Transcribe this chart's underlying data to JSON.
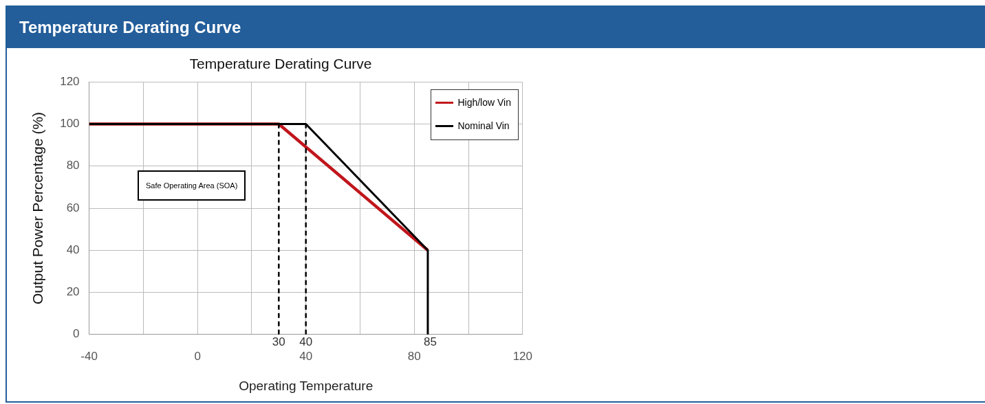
{
  "chart_data": {
    "type": "line",
    "title": "Temperature Derating Curve",
    "subtitle": "Temperature Derating Curve",
    "xlabel": "Operating Temperature",
    "ylabel": "Output Power Percentage (%)",
    "series": [
      {
        "name": "High/low Vin",
        "color": "#c0161c",
        "x": [
          -40,
          30,
          85
        ],
        "values": [
          100,
          100,
          40
        ]
      },
      {
        "name": "Nominal Vin",
        "color": "#000000",
        "x": [
          -40,
          40,
          85,
          85
        ],
        "values": [
          100,
          100,
          40,
          0
        ]
      }
    ],
    "xlim": [
      -40,
      120
    ],
    "xticks": [
      -40,
      {
        "value": -20,
        "label": null
      },
      0,
      {
        "value": 20,
        "label": null
      },
      40,
      {
        "value": 60,
        "label": null
      },
      80,
      {
        "value": 100,
        "label": null
      },
      120
    ],
    "ylim": [
      0,
      120
    ],
    "yticks": [
      0,
      20,
      40,
      60,
      80,
      100,
      120
    ],
    "ref_lines": [
      {
        "axis": "x",
        "value": 30,
        "label": "30",
        "color": "#000000",
        "line_style": "dashed"
      },
      {
        "axis": "x",
        "value": 40,
        "label": "40",
        "color": "#000000",
        "line_style": "dashed"
      }
    ],
    "annotations": [
      "Safe Operating Area (SOA)",
      {
        "text": "85",
        "x": 85,
        "y": 0
      }
    ],
    "grid": true,
    "legend": "top right",
    "marker": "none",
    "line_style": "solid"
  }
}
